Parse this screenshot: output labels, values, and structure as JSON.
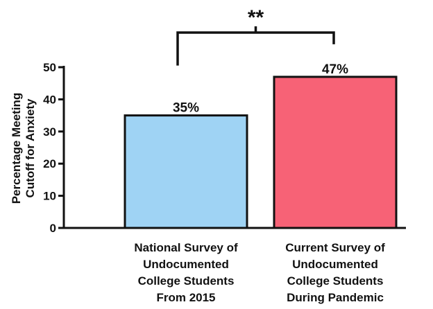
{
  "chart_data": {
    "type": "bar",
    "categories": [
      [
        "National Survey of",
        "Undocumented",
        "College Students",
        "From 2015"
      ],
      [
        "Current Survey of",
        "Undocumented",
        "College Students",
        "During Pandemic"
      ]
    ],
    "values": [
      35,
      47
    ],
    "data_labels": [
      "35%",
      "47%"
    ],
    "colors": [
      "#9fd3f4",
      "#f76276"
    ],
    "ylabel": [
      "Percentage Meeting",
      "Cutoff for Anxiety"
    ],
    "ylim": [
      0,
      50
    ],
    "yticks": [
      0,
      10,
      20,
      30,
      40,
      50
    ],
    "ytick_labels": [
      "0",
      "10",
      "20",
      "30",
      "40",
      "50"
    ],
    "significance": "**",
    "grid": false
  }
}
